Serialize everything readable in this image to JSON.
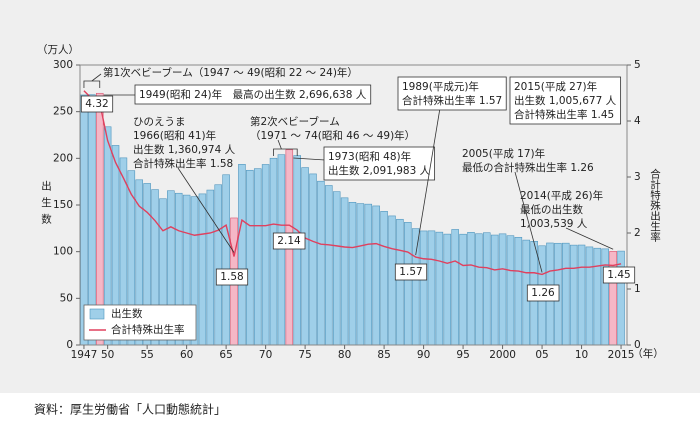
{
  "chart_data": {
    "type": "bar-line",
    "y_unit": "（万人）",
    "x_unit": "（年）",
    "y_label": "出生数",
    "y2_label": "合計特殊出生率",
    "source": "資料：厚生労働省「人口動態統計」",
    "categories": [
      "1947",
      null,
      null,
      "50",
      null,
      null,
      null,
      null,
      "55",
      null,
      null,
      null,
      null,
      "60",
      null,
      null,
      null,
      null,
      "65",
      null,
      null,
      null,
      null,
      "70",
      null,
      null,
      null,
      null,
      "75",
      null,
      null,
      null,
      null,
      "80",
      null,
      null,
      null,
      null,
      "85",
      null,
      null,
      null,
      null,
      "90",
      null,
      null,
      null,
      null,
      "95",
      null,
      null,
      null,
      null,
      "2000",
      null,
      null,
      null,
      null,
      "05",
      null,
      null,
      null,
      null,
      "10",
      null,
      null,
      null,
      null,
      "2015"
    ],
    "ylim": [
      0,
      300
    ],
    "yticks": [
      0,
      50,
      100,
      150,
      200,
      250,
      300
    ],
    "y2lim": [
      0,
      5
    ],
    "y2ticks": [
      0,
      1,
      2,
      3,
      4,
      5
    ],
    "series": [
      {
        "name": "出生数",
        "type": "bar",
        "color": "#9fcfe9",
        "colors": [
          "#9fcfe9",
          "#9fcfe9",
          "#f5b7c6",
          "#9fcfe9",
          "#9fcfe9",
          "#9fcfe9",
          "#9fcfe9",
          "#9fcfe9",
          "#9fcfe9",
          "#9fcfe9",
          "#9fcfe9",
          "#9fcfe9",
          "#9fcfe9",
          "#9fcfe9",
          "#9fcfe9",
          "#9fcfe9",
          "#9fcfe9",
          "#9fcfe9",
          "#9fcfe9",
          "#f5b7c6",
          "#9fcfe9",
          "#9fcfe9",
          "#9fcfe9",
          "#9fcfe9",
          "#9fcfe9",
          "#9fcfe9",
          "#f5b7c6",
          "#9fcfe9",
          "#9fcfe9",
          "#9fcfe9",
          "#9fcfe9",
          "#9fcfe9",
          "#9fcfe9",
          "#9fcfe9",
          "#9fcfe9",
          "#9fcfe9",
          "#9fcfe9",
          "#9fcfe9",
          "#9fcfe9",
          "#9fcfe9",
          "#9fcfe9",
          "#9fcfe9",
          "#9fcfe9",
          "#9fcfe9",
          "#9fcfe9",
          "#9fcfe9",
          "#9fcfe9",
          "#9fcfe9",
          "#9fcfe9",
          "#9fcfe9",
          "#9fcfe9",
          "#9fcfe9",
          "#9fcfe9",
          "#9fcfe9",
          "#9fcfe9",
          "#9fcfe9",
          "#9fcfe9",
          "#9fcfe9",
          "#9fcfe9",
          "#9fcfe9",
          "#9fcfe9",
          "#9fcfe9",
          "#9fcfe9",
          "#9fcfe9",
          "#9fcfe9",
          "#9fcfe9",
          "#9fcfe9",
          "#f5b7c6",
          "#9fcfe9"
        ],
        "values": [
          267.9,
          268.2,
          269.7,
          233.8,
          213.8,
          200.5,
          186.8,
          177.0,
          173.1,
          166.5,
          156.7,
          165.3,
          162.6,
          160.6,
          158.9,
          161.9,
          166.0,
          171.7,
          182.4,
          136.1,
          193.6,
          187.2,
          188.9,
          193.4,
          200.1,
          203.9,
          209.2,
          203.0,
          190.1,
          183.3,
          175.5,
          170.9,
          164.3,
          157.7,
          152.9,
          151.5,
          150.9,
          149.0,
          143.2,
          138.3,
          134.7,
          131.4,
          124.7,
          122.2,
          122.3,
          120.9,
          118.8,
          123.8,
          118.7,
          120.7,
          119.2,
          120.3,
          117.8,
          119.1,
          117.1,
          115.4,
          112.4,
          111.1,
          106.3,
          109.3,
          109.0,
          109.1,
          107.0,
          107.1,
          105.1,
          103.7,
          103.0,
          100.4,
          100.6
        ]
      },
      {
        "name": "合計特殊出生率",
        "type": "line",
        "axis": "y2",
        "color": "#e0405e",
        "values": [
          4.54,
          4.4,
          4.32,
          3.65,
          3.26,
          2.98,
          2.69,
          2.48,
          2.37,
          2.22,
          2.04,
          2.11,
          2.04,
          2.0,
          1.96,
          1.98,
          2.0,
          2.05,
          2.14,
          1.58,
          2.23,
          2.13,
          2.13,
          2.13,
          2.16,
          2.14,
          2.14,
          2.05,
          1.91,
          1.85,
          1.8,
          1.79,
          1.77,
          1.75,
          1.74,
          1.77,
          1.8,
          1.81,
          1.76,
          1.72,
          1.69,
          1.66,
          1.57,
          1.54,
          1.53,
          1.5,
          1.46,
          1.5,
          1.42,
          1.43,
          1.39,
          1.38,
          1.34,
          1.36,
          1.33,
          1.32,
          1.29,
          1.29,
          1.26,
          1.32,
          1.34,
          1.37,
          1.37,
          1.39,
          1.39,
          1.41,
          1.43,
          1.42,
          1.45
        ],
        "value_labels": [
          null,
          null,
          "4.32",
          null,
          null,
          null,
          null,
          null,
          null,
          null,
          null,
          null,
          null,
          null,
          null,
          null,
          null,
          null,
          null,
          "1.58",
          null,
          null,
          null,
          null,
          null,
          null,
          "2.14",
          null,
          null,
          null,
          null,
          null,
          null,
          null,
          null,
          null,
          null,
          null,
          null,
          null,
          null,
          null,
          "1.57",
          null,
          null,
          null,
          null,
          null,
          null,
          null,
          null,
          null,
          null,
          null,
          null,
          null,
          null,
          null,
          "1.26",
          null,
          null,
          null,
          null,
          null,
          null,
          null,
          null,
          null,
          "1.45"
        ]
      }
    ],
    "annotations": [
      [
        "第1次ベビーブーム（1947 ～ 49(昭和 22 ～ 24)年）"
      ],
      [
        "1949(昭和 24)年　最高の出生数 2,696,638 人"
      ],
      [
        "ひのえうま",
        "1966(昭和 41)年",
        "出生数 1,360,974 人",
        "合計特殊出生率 1.58"
      ],
      [
        "第2次ベビーブーム",
        "（1971 ～ 74(昭和 46 ～ 49)年）"
      ],
      [
        "1973(昭和 48)年",
        "出生数 2,091,983 人"
      ],
      [
        "1989(平成元)年",
        "合計特殊出生率 1.57"
      ],
      [
        "2015(平成 27)年",
        "出生数 1,005,677 人",
        "合計特殊出生率 1.45"
      ],
      [
        "2005(平成 17)年",
        "最低の合計特殊出生率 1.26"
      ],
      [
        "2014(平成 26)年",
        "最低の出生数",
        "1,003,539 人"
      ]
    ],
    "legend": "lower left"
  }
}
